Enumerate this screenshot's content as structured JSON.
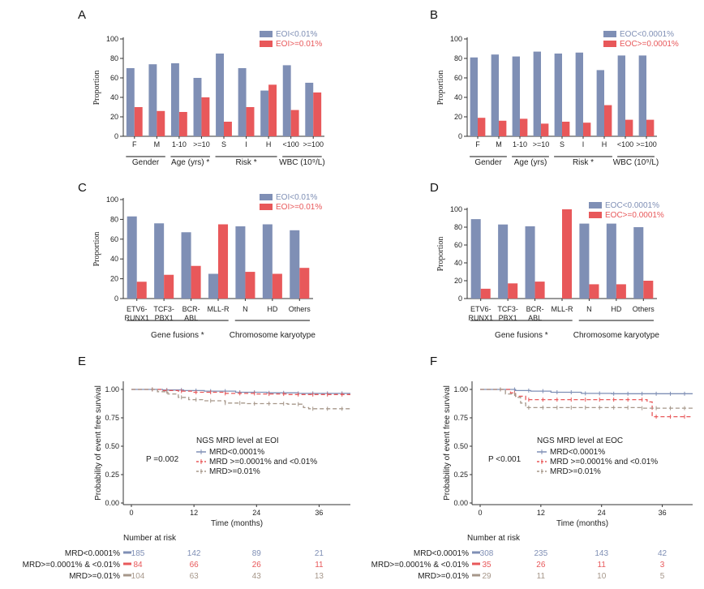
{
  "colors": {
    "blue": "#7F8FB5",
    "red": "#E8585A",
    "gray": "#A6978A",
    "axis": "#333333"
  },
  "panels": {
    "A": "A",
    "B": "B",
    "C": "C",
    "D": "D",
    "E": "E",
    "F": "F"
  },
  "chart_data": [
    {
      "id": "A",
      "type": "bar",
      "ylabel": "Proportion",
      "ylim": [
        0,
        100
      ],
      "yticks": [
        0,
        20,
        40,
        60,
        80,
        100
      ],
      "categories": [
        "F",
        "M",
        "1-10",
        ">=10",
        "S",
        "I",
        "H",
        "<100",
        ">=100"
      ],
      "series": [
        {
          "name": "EOI<0.01%",
          "color": "#7F8FB5",
          "values": [
            70,
            74,
            75,
            60,
            85,
            70,
            47,
            73,
            55
          ]
        },
        {
          "name": "EOI>=0.01%",
          "color": "#E8585A",
          "values": [
            30,
            26,
            25,
            40,
            15,
            30,
            53,
            27,
            45
          ]
        }
      ],
      "groups": [
        {
          "label": "Gender",
          "from": 0,
          "to": 1
        },
        {
          "label": "Age (yrs) *",
          "from": 2,
          "to": 3
        },
        {
          "label": "Risk *",
          "from": 4,
          "to": 6
        },
        {
          "label": "WBC (10⁹/L)",
          "from": 7,
          "to": 8
        }
      ]
    },
    {
      "id": "B",
      "type": "bar",
      "ylabel": "Proportion",
      "ylim": [
        0,
        100
      ],
      "yticks": [
        0,
        20,
        40,
        60,
        80,
        100
      ],
      "categories": [
        "F",
        "M",
        "1-10",
        ">=10",
        "S",
        "I",
        "H",
        "<100",
        ">=100"
      ],
      "series": [
        {
          "name": "EOC<0.0001%",
          "color": "#7F8FB5",
          "values": [
            81,
            84,
            82,
            87,
            85,
            86,
            68,
            83,
            83
          ]
        },
        {
          "name": "EOC>=0.0001%",
          "color": "#E8585A",
          "values": [
            19,
            16,
            18,
            13,
            15,
            14,
            32,
            17,
            17
          ]
        }
      ],
      "groups": [
        {
          "label": "Gender",
          "from": 0,
          "to": 1
        },
        {
          "label": "Age (yrs)",
          "from": 2,
          "to": 3
        },
        {
          "label": "Risk *",
          "from": 4,
          "to": 6
        },
        {
          "label": "WBC (10⁹/L)",
          "from": 7,
          "to": 8
        }
      ]
    },
    {
      "id": "C",
      "type": "bar",
      "ylabel": "Proportion",
      "ylim": [
        0,
        100
      ],
      "yticks": [
        0,
        20,
        40,
        60,
        80,
        100
      ],
      "categories": [
        "ETV6-\nRUNX1",
        "TCF3-\nPBX1",
        "BCR-\nABL",
        "MLL-R",
        "N",
        "HD",
        "Others"
      ],
      "series": [
        {
          "name": "EOI<0.01%",
          "color": "#7F8FB5",
          "values": [
            83,
            76,
            67,
            25,
            73,
            75,
            69
          ]
        },
        {
          "name": "EOI>=0.01%",
          "color": "#E8585A",
          "values": [
            17,
            24,
            33,
            75,
            27,
            25,
            31
          ]
        }
      ],
      "groups": [
        {
          "label": "Gene fusions *",
          "from": 0,
          "to": 3
        },
        {
          "label": "Chromosome karyotype",
          "from": 4,
          "to": 6
        }
      ]
    },
    {
      "id": "D",
      "type": "bar",
      "ylabel": "Proportion",
      "ylim": [
        0,
        100
      ],
      "yticks": [
        0,
        20,
        40,
        60,
        80,
        100
      ],
      "categories": [
        "ETV6-\nRUNX1",
        "TCF3-\nPBX1",
        "BCR-\nABL",
        "MLL-R",
        "N",
        "HD",
        "Others"
      ],
      "series": [
        {
          "name": "EOC<0.0001%",
          "color": "#7F8FB5",
          "values": [
            89,
            83,
            81,
            0,
            84,
            84,
            80
          ]
        },
        {
          "name": "EOC>=0.0001%",
          "color": "#E8585A",
          "values": [
            11,
            17,
            19,
            100,
            16,
            16,
            20
          ]
        }
      ],
      "groups": [
        {
          "label": "Gene fusions *",
          "from": 0,
          "to": 3
        },
        {
          "label": "Chromosome karyotype",
          "from": 4,
          "to": 6
        }
      ]
    },
    {
      "id": "E",
      "type": "line",
      "ylabel": "Probability of event free survival",
      "xlabel": "Time (months)",
      "xlim": [
        0,
        42
      ],
      "xticks": [
        0,
        12,
        24,
        36
      ],
      "ylim": [
        0,
        1
      ],
      "yticks": [
        "0.00",
        "0.25",
        "0.50",
        "0.75",
        "1.00"
      ],
      "pvalue": "P =0.002",
      "legend_title": "NGS MRD level at EOI",
      "series": [
        {
          "name": "MRD<0.0001%",
          "color": "#7F8FB5",
          "dash": "",
          "points": [
            [
              0,
              1
            ],
            [
              5,
              1
            ],
            [
              6,
              0.995
            ],
            [
              10,
              0.99
            ],
            [
              14,
              0.985
            ],
            [
              20,
              0.975
            ],
            [
              26,
              0.97
            ],
            [
              32,
              0.965
            ],
            [
              42,
              0.965
            ]
          ]
        },
        {
          "name": "MRD >=0.0001% and <0.01%",
          "color": "#E8585A",
          "dash": "5,3",
          "points": [
            [
              0,
              1
            ],
            [
              5,
              1
            ],
            [
              6,
              0.99
            ],
            [
              9,
              0.985
            ],
            [
              12,
              0.975
            ],
            [
              18,
              0.965
            ],
            [
              24,
              0.96
            ],
            [
              30,
              0.955
            ],
            [
              36,
              0.955
            ],
            [
              42,
              0.955
            ]
          ]
        },
        {
          "name": "MRD>=0.01%",
          "color": "#A6978A",
          "dash": "5,3",
          "points": [
            [
              0,
              1
            ],
            [
              4,
              1
            ],
            [
              5,
              0.98
            ],
            [
              7,
              0.96
            ],
            [
              9,
              0.93
            ],
            [
              11,
              0.91
            ],
            [
              14,
              0.9
            ],
            [
              18,
              0.88
            ],
            [
              22,
              0.875
            ],
            [
              30,
              0.87
            ],
            [
              33,
              0.84
            ],
            [
              34,
              0.83
            ],
            [
              42,
              0.83
            ]
          ]
        }
      ],
      "risk_title": "Number at risk",
      "risk_rows": [
        {
          "label": "MRD<0.0001%",
          "color": "#7F8FB5",
          "values": [
            "185",
            "142",
            "89",
            "21"
          ]
        },
        {
          "label": "MRD>=0.0001% & <0.01%",
          "color": "#E8585A",
          "values": [
            "84",
            "66",
            "26",
            "11"
          ]
        },
        {
          "label": "MRD>=0.01%",
          "color": "#A6978A",
          "values": [
            "104",
            "63",
            "43",
            "13"
          ]
        }
      ]
    },
    {
      "id": "F",
      "type": "line",
      "ylabel": "Probability of event free survival",
      "xlabel": "Time (months)",
      "xlim": [
        0,
        42
      ],
      "xticks": [
        0,
        12,
        24,
        36
      ],
      "ylim": [
        0,
        1
      ],
      "yticks": [
        "0.00",
        "0.25",
        "0.50",
        "0.75",
        "1.00"
      ],
      "pvalue": "P <0.001",
      "legend_title": "NGS MRD level at EOC",
      "series": [
        {
          "name": "MRD<0.0001%",
          "color": "#7F8FB5",
          "dash": "",
          "points": [
            [
              0,
              1
            ],
            [
              6,
              1
            ],
            [
              7,
              0.99
            ],
            [
              10,
              0.985
            ],
            [
              14,
              0.975
            ],
            [
              20,
              0.965
            ],
            [
              26,
              0.962
            ],
            [
              42,
              0.962
            ]
          ]
        },
        {
          "name": "MRD >=0.0001% and <0.01%",
          "color": "#E8585A",
          "dash": "5,3",
          "points": [
            [
              0,
              1
            ],
            [
              5,
              1
            ],
            [
              6,
              0.97
            ],
            [
              7,
              0.94
            ],
            [
              9,
              0.91
            ],
            [
              20,
              0.91
            ],
            [
              33,
              0.89
            ],
            [
              34,
              0.76
            ],
            [
              42,
              0.76
            ]
          ]
        },
        {
          "name": "MRD>=0.01%",
          "color": "#A6978A",
          "dash": "5,3",
          "points": [
            [
              0,
              1
            ],
            [
              4,
              1
            ],
            [
              5,
              0.96
            ],
            [
              7,
              0.93
            ],
            [
              8,
              0.88
            ],
            [
              9,
              0.84
            ],
            [
              20,
              0.84
            ],
            [
              32,
              0.835
            ],
            [
              42,
              0.835
            ]
          ]
        }
      ],
      "risk_title": "Number at risk",
      "risk_rows": [
        {
          "label": "MRD<0.0001%",
          "color": "#7F8FB5",
          "values": [
            "308",
            "235",
            "143",
            "42"
          ]
        },
        {
          "label": "MRD>=0.0001% & <0.01%",
          "color": "#E8585A",
          "values": [
            "35",
            "26",
            "11",
            "3"
          ]
        },
        {
          "label": "MRD>=0.01%",
          "color": "#A6978A",
          "values": [
            "29",
            "11",
            "10",
            "5"
          ]
        }
      ]
    }
  ]
}
